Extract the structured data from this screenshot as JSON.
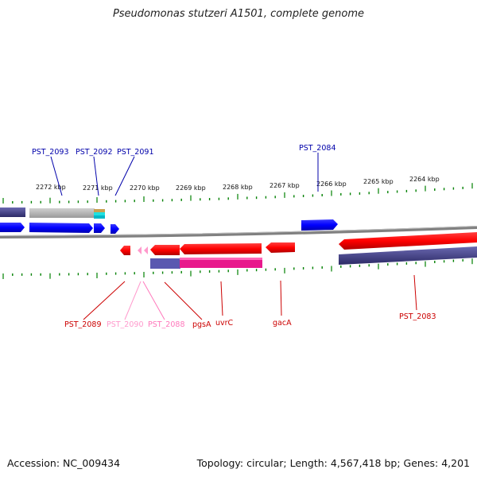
{
  "title": "Pseudomonas stutzeri A1501, complete genome",
  "footer": {
    "accession": "Accession: NC_009434",
    "topology": "Topology: circular; Length: 4,567,418 bp; Genes: 4,201"
  },
  "scale_labels": [
    "2272 kbp",
    "2271 kbp",
    "2270 kbp",
    "2269 kbp",
    "2268 kbp",
    "2267 kbp",
    "2266 kbp",
    "2265 kbp",
    "2264 kbp"
  ],
  "top_gene_labels": [
    {
      "label": "PST_2093",
      "color": "#0000aa"
    },
    {
      "label": "PST_2092",
      "color": "#0000aa"
    },
    {
      "label": "PST_2091",
      "color": "#0000aa"
    },
    {
      "label": "PST_2084",
      "color": "#0000aa"
    }
  ],
  "bottom_gene_labels": [
    {
      "label": "PST_2089",
      "color": "#cc0000"
    },
    {
      "label": "PST_2090",
      "color": "#ff99cc"
    },
    {
      "label": "PST_2088",
      "color": "#ff77bb"
    },
    {
      "label": "pgsA",
      "color": "#cc0000"
    },
    {
      "label": "uvrC",
      "color": "#cc0000"
    },
    {
      "label": "gacA",
      "color": "#cc0000"
    },
    {
      "label": "PST_2083",
      "color": "#cc0000"
    }
  ],
  "colors": {
    "forward_gene": "#0000ff",
    "reverse_gene": "#ff0000",
    "rna_gene": "#ff99cc",
    "scale": "#008000",
    "backbone": "#808080",
    "feature_dark": "#3c3a7a",
    "feature_pink": "#e8198c"
  }
}
